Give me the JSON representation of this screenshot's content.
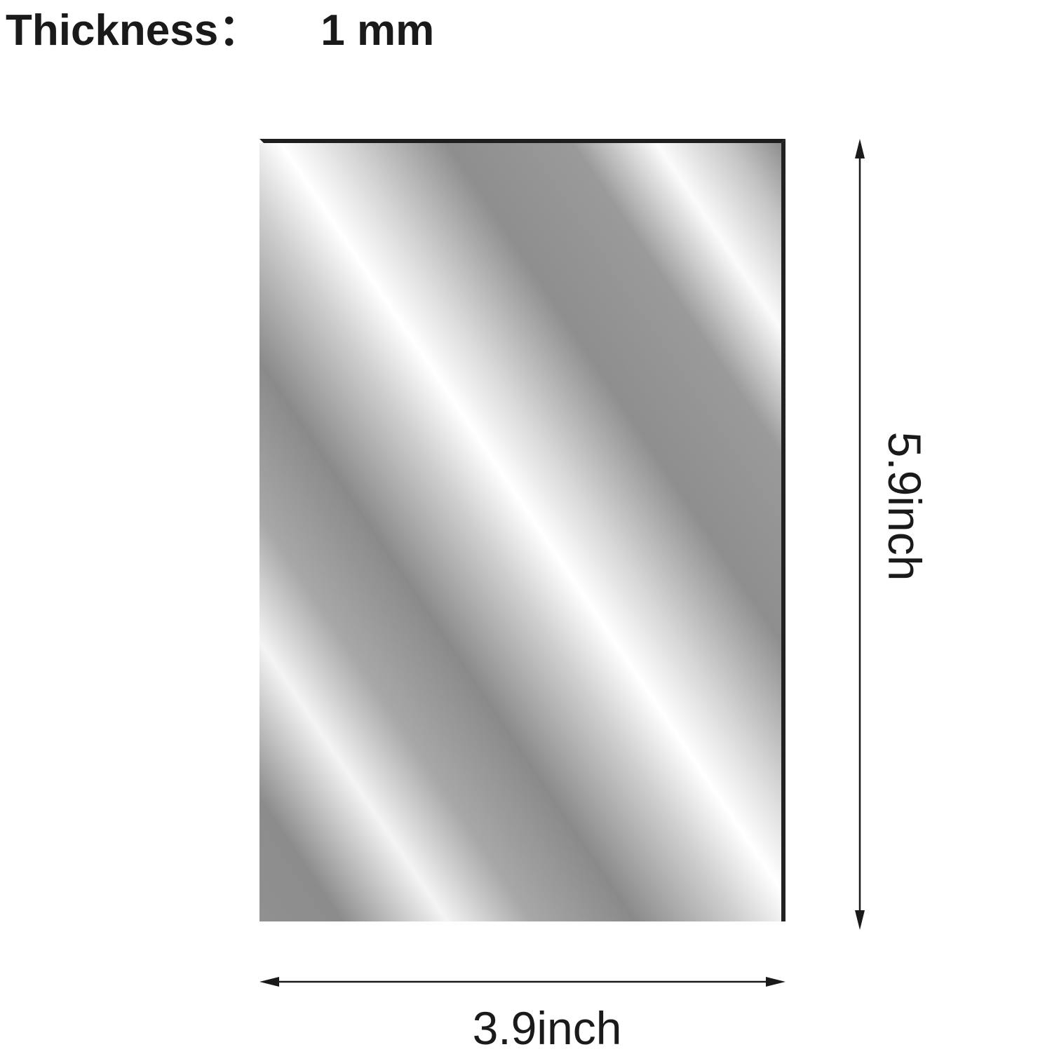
{
  "header": {
    "thickness_label": "Thickness：",
    "thickness_value": "1 mm"
  },
  "dimensions": {
    "width_label": "3.9inch",
    "height_label": "5.9inch"
  },
  "colors": {
    "text": "#1a1a1a",
    "edge": "#1e1e1e",
    "mirror_dark": "#8a8a8a",
    "mirror_light": "#ffffff"
  }
}
